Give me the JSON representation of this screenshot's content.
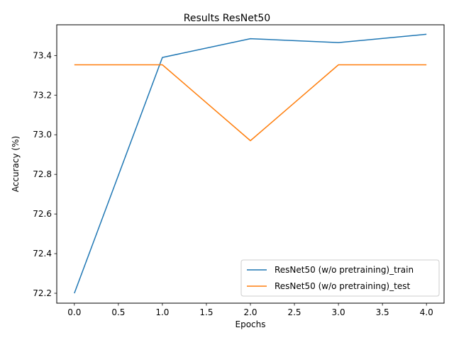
{
  "chart_data": {
    "type": "line",
    "title": "Results ResNet50",
    "xlabel": "Epochs",
    "ylabel": "Accuracy (%)",
    "x": [
      0,
      1,
      2,
      3,
      4
    ],
    "xlim": [
      -0.2,
      4.2
    ],
    "ylim": [
      72.15,
      73.555
    ],
    "xticks": [
      0.0,
      0.5,
      1.0,
      1.5,
      2.0,
      2.5,
      3.0,
      3.5,
      4.0
    ],
    "xtick_labels": [
      "0.0",
      "0.5",
      "1.0",
      "1.5",
      "2.0",
      "2.5",
      "3.0",
      "3.5",
      "4.0"
    ],
    "yticks": [
      72.2,
      72.4,
      72.6,
      72.8,
      73.0,
      73.2,
      73.4
    ],
    "ytick_labels": [
      "72.2",
      "72.4",
      "72.6",
      "72.8",
      "73.0",
      "73.2",
      "73.4"
    ],
    "grid": false,
    "legend_position": "lower-right",
    "series": [
      {
        "name": "ResNet50 (w/o pretraining)_train",
        "color": "#1f77b4",
        "values": [
          72.2,
          73.39,
          73.485,
          73.465,
          73.507
        ]
      },
      {
        "name": "ResNet50 (w/o pretraining)_test",
        "color": "#ff7f0e",
        "values": [
          73.353,
          73.353,
          72.97,
          73.353,
          73.353
        ]
      }
    ]
  }
}
